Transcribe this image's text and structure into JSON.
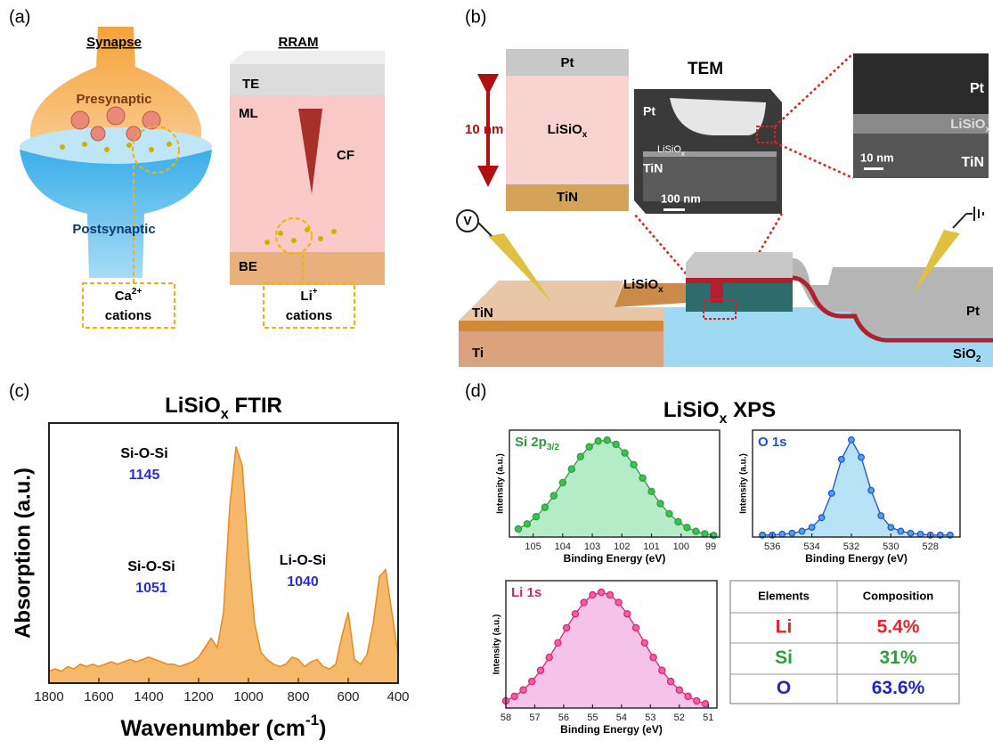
{
  "panel_labels": [
    "(a)",
    "(b)",
    "(c)",
    "(d)"
  ],
  "synapse": {
    "title": "Synapse",
    "presynaptic": "Presynaptic",
    "postsynaptic": "Postsynaptic",
    "cation_ion": "Ca",
    "cation_charge": "2+",
    "cation_word": "cations"
  },
  "rram": {
    "title": "RRAM",
    "te": "TE",
    "ml": "ML",
    "cf": "CF",
    "be": "BE",
    "cation_ion": "Li",
    "cation_charge": "+",
    "cation_word": "cations"
  },
  "device": {
    "stack_top": "Pt",
    "stack_mid": "LiSiO",
    "stack_mid_sub": "x",
    "stack_bottom": "TiN",
    "thickness": "10 nm",
    "tem_title": "TEM",
    "tem_pt": "Pt",
    "tem_lisio": "LiSiO",
    "tem_lisio_sub": "x",
    "tem_tin": "TiN",
    "tem_scale": "100 nm",
    "zoom_pt": "Pt",
    "zoom_lisio": "LiSiO",
    "zoom_lisio_sub": "x",
    "zoom_tin": "TiN",
    "zoom_scale": "10 nm",
    "voltage": "V",
    "lisio": "LiSiO",
    "lisio_sub": "x",
    "tin": "TiN",
    "ti": "Ti",
    "pt": "Pt",
    "sio": "SiO",
    "sio_sub": "2"
  },
  "xps_title": "LiSiO",
  "xps_title_sub": "x",
  "xps_title_suffix": " XPS",
  "chart_data": [
    {
      "type": "area",
      "title": "LiSiO",
      "title_sub": "x",
      "title_suffix": " FTIR",
      "ylabel": "Absorption (a.u.)",
      "xlabel": "Wavenumber (cm",
      "xlabel_sup": "-1",
      "xlabel_end": ")",
      "x": [
        1800,
        1775,
        1750,
        1725,
        1700,
        1675,
        1650,
        1625,
        1600,
        1575,
        1550,
        1525,
        1500,
        1475,
        1450,
        1425,
        1400,
        1375,
        1350,
        1325,
        1300,
        1275,
        1250,
        1225,
        1200,
        1175,
        1150,
        1125,
        1100,
        1075,
        1050,
        1025,
        1000,
        975,
        950,
        925,
        900,
        875,
        850,
        825,
        800,
        775,
        750,
        725,
        700,
        675,
        650,
        625,
        600,
        575,
        550,
        525,
        500,
        475,
        450,
        425,
        400
      ],
      "values": [
        0.05,
        0.06,
        0.05,
        0.07,
        0.06,
        0.08,
        0.07,
        0.08,
        0.07,
        0.08,
        0.09,
        0.08,
        0.09,
        0.1,
        0.09,
        0.1,
        0.11,
        0.1,
        0.09,
        0.08,
        0.08,
        0.07,
        0.08,
        0.09,
        0.11,
        0.15,
        0.19,
        0.15,
        0.3,
        0.75,
        1.0,
        0.92,
        0.55,
        0.25,
        0.13,
        0.1,
        0.08,
        0.07,
        0.08,
        0.11,
        0.1,
        0.07,
        0.09,
        0.1,
        0.07,
        0.06,
        0.08,
        0.2,
        0.3,
        0.1,
        0.08,
        0.12,
        0.25,
        0.45,
        0.48,
        0.3,
        0.12
      ],
      "xlim": [
        1800,
        400
      ],
      "ylim": [
        0,
        1.1
      ],
      "xticks": [
        1800,
        1600,
        1400,
        1200,
        1000,
        800,
        600,
        400
      ],
      "color": "#e88a1a",
      "fill": "#f6b96b",
      "frame": true,
      "annotations": [
        {
          "label": "Si-O-Si",
          "value": 1145
        },
        {
          "label": "Si-O-Si",
          "value": 1051
        },
        {
          "label": "Li-O-Si",
          "value": 1040
        }
      ]
    },
    {
      "type": "area",
      "title": "Si 2p",
      "title_sub": "3/2",
      "ylabel": "Intensity (a.u.)",
      "xlabel": "Binding Energy (eV)",
      "x": [
        105.5,
        105.2,
        104.9,
        104.6,
        104.3,
        104.0,
        103.7,
        103.4,
        103.1,
        102.8,
        102.5,
        102.2,
        101.9,
        101.6,
        101.3,
        101.0,
        100.7,
        100.4,
        100.1,
        99.8,
        99.5,
        99.2,
        98.9
      ],
      "values": [
        0.083,
        0.135,
        0.209,
        0.306,
        0.425,
        0.56,
        0.699,
        0.828,
        0.929,
        0.988,
        0.997,
        0.954,
        0.865,
        0.744,
        0.607,
        0.469,
        0.344,
        0.239,
        0.157,
        0.098,
        0.058,
        0.033,
        0.017
      ],
      "xlim": [
        105.8,
        98.7
      ],
      "ylim": [
        0,
        1.1
      ],
      "xticks": [
        105,
        104,
        103,
        102,
        101,
        100,
        99
      ],
      "color": "#2a9d3a",
      "fill": "#b5ecc8",
      "marker_fill": "#3cbf55",
      "markers": true,
      "frame": true
    },
    {
      "type": "area",
      "title": "O 1s",
      "ylabel": "Intensity (a.u.)",
      "xlabel": "Binding Energy (eV)",
      "x": [
        536.5,
        536,
        535.5,
        535,
        534.5,
        534,
        533.5,
        533,
        532.5,
        532,
        531.5,
        531,
        530.5,
        530,
        529.5,
        529,
        528.5,
        528,
        527.5,
        527
      ],
      "values": [
        0.02,
        0.02,
        0.03,
        0.04,
        0.06,
        0.1,
        0.2,
        0.45,
        0.8,
        1.0,
        0.82,
        0.48,
        0.22,
        0.1,
        0.06,
        0.04,
        0.03,
        0.02,
        0.02,
        0.02
      ],
      "xlim": [
        537,
        526.5
      ],
      "ylim": [
        0,
        1.1
      ],
      "xticks": [
        536,
        534,
        532,
        530,
        528
      ],
      "color": "#1f4fd0",
      "fill": "#b8e2f5",
      "marker_fill": "#4aa3f0",
      "markers": true,
      "frame": true
    },
    {
      "type": "area",
      "title": "Li 1s",
      "ylabel": "Intensity (a.u.)",
      "xlabel": "Binding Energy (eV)",
      "x": [
        58,
        57.7,
        57.4,
        57.1,
        56.8,
        56.5,
        56.2,
        55.9,
        55.6,
        55.3,
        55.0,
        54.7,
        54.4,
        54.1,
        53.8,
        53.5,
        53.2,
        52.9,
        52.6,
        52.3,
        52.0,
        51.7,
        51.4,
        51.1
      ],
      "values": [
        0.062,
        0.101,
        0.156,
        0.23,
        0.325,
        0.437,
        0.563,
        0.693,
        0.813,
        0.912,
        0.977,
        1.0,
        0.977,
        0.912,
        0.813,
        0.693,
        0.563,
        0.437,
        0.325,
        0.23,
        0.156,
        0.101,
        0.062,
        0.037
      ],
      "xlim": [
        58,
        50.7
      ],
      "ylim": [
        0,
        1.1
      ],
      "xticks": [
        58,
        57,
        56,
        55,
        54,
        53,
        52,
        51
      ],
      "color": "#e0206e",
      "fill": "#f5c2ea",
      "marker_fill": "#f060a8",
      "markers": true,
      "frame": true
    }
  ],
  "table": {
    "header": [
      "Elements",
      "Composition"
    ],
    "rows": [
      [
        "Li",
        "5.4%"
      ],
      [
        "Si",
        "31%"
      ],
      [
        "O",
        "63.6%"
      ]
    ],
    "row_colors": [
      "#e8232a",
      "#2e9e3e",
      "#2323c8"
    ]
  }
}
